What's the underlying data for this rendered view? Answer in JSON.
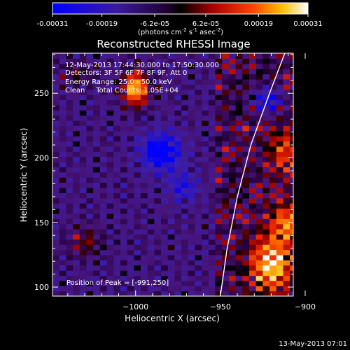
{
  "colorbar": {
    "ticks": [
      "-0.00031",
      "-0.00019",
      "-6.2e-05",
      "6.2e-05",
      "0.00019",
      "0.00031"
    ],
    "tick_values": [
      -0.00031,
      -0.00019,
      -6.2e-05,
      6.2e-05,
      0.00019,
      0.00031
    ],
    "range": [
      -0.00031,
      0.00031
    ],
    "units_main": "(photons cm",
    "units_exp1": "-2",
    "units_mid": " s",
    "units_exp2": "-1",
    "units_mid2": " asec",
    "units_exp3": "-2",
    "units_end": ")"
  },
  "title": "Reconstructed RHESSI Image",
  "info": {
    "time_range": "12-May-2013 17:44:30.000 to 17:50:30.000",
    "detectors": "Detectors: 3F 5F 6F 7F 8F 9F, Att 0",
    "energy": "Energy Range: 25.0 - 50.0 keV",
    "clean": "Clean     Total Counts: 1.05E+04"
  },
  "peak": "Position of Peak = [-991,250]",
  "timestamp": "13-May-2013 07:01",
  "chart_data": {
    "type": "heatmap",
    "title": "Reconstructed RHESSI Image",
    "xlabel": "Heliocentric X (arcsec)",
    "ylabel": "Heliocentric Y (arcsec)",
    "xlim": [
      -1049,
      -907
    ],
    "ylim": [
      93,
      281
    ],
    "xticks": [
      -1000,
      -950,
      -900
    ],
    "xtick_labels": [
      "−1000",
      "−950",
      "−900"
    ],
    "yticks": [
      100,
      150,
      200,
      250
    ],
    "ytick_labels": [
      "100",
      "150",
      "200",
      "250"
    ],
    "colormap": "blue-black-red-yellow-white",
    "peak_position": [
      -991,
      250
    ],
    "limb_curve": [
      [
        -950,
        93
      ],
      [
        -946,
        130
      ],
      [
        -940,
        170
      ],
      [
        -932,
        210
      ],
      [
        -921,
        250
      ],
      [
        -912,
        281
      ]
    ],
    "bright_sources": [
      {
        "x": -1000,
        "y": 254,
        "amp": 1.1,
        "sx": 5,
        "sy": 9
      },
      {
        "x": -920,
        "y": 118,
        "amp": 1.0,
        "sx": 8,
        "sy": 14
      },
      {
        "x": -910,
        "y": 150,
        "amp": 0.7,
        "sx": 7,
        "sy": 10
      },
      {
        "x": -912,
        "y": 205,
        "amp": 0.5,
        "sx": 6,
        "sy": 12
      },
      {
        "x": -1030,
        "y": 135,
        "amp": 0.35,
        "sx": 7,
        "sy": 8
      },
      {
        "x": -1035,
        "y": 265,
        "amp": 0.3,
        "sx": 6,
        "sy": 6
      }
    ],
    "dark_sources": [
      {
        "x": -985,
        "y": 205,
        "amp": -0.9,
        "sx": 8,
        "sy": 10
      },
      {
        "x": -972,
        "y": 178,
        "amp": -0.5,
        "sx": 6,
        "sy": 8
      },
      {
        "x": -922,
        "y": 245,
        "amp": -0.7,
        "sx": 6,
        "sy": 7
      }
    ]
  }
}
